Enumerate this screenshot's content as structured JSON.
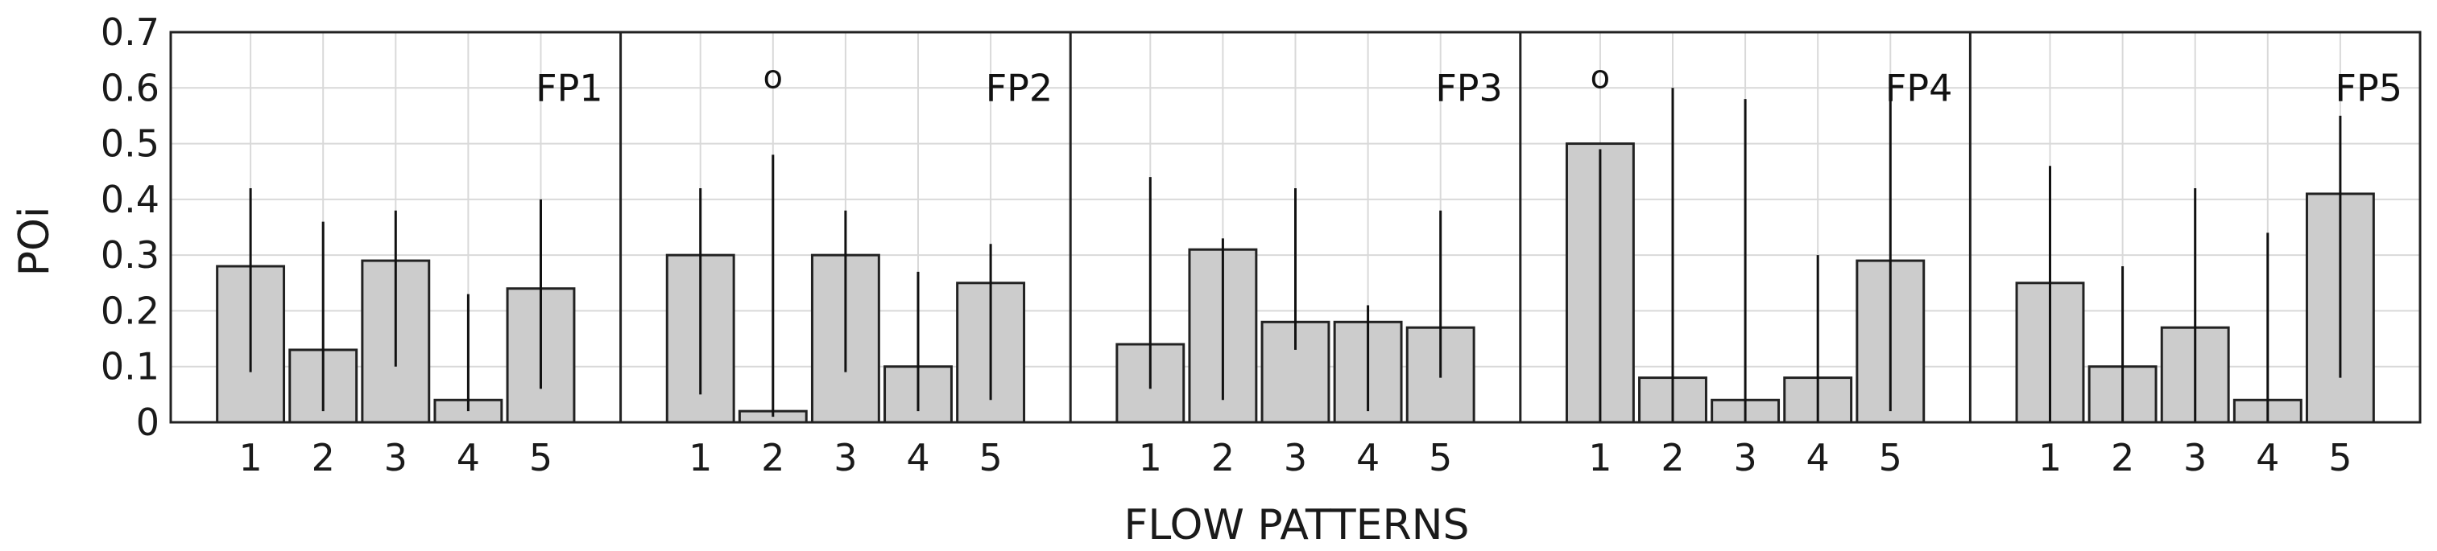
{
  "chart_data": {
    "type": "bar",
    "xlabel": "FLOW PATTERNS",
    "ylabel": "POi",
    "ylim": [
      0,
      0.7
    ],
    "yticks": [
      "0",
      "0.1",
      "0.2",
      "0.3",
      "0.4",
      "0.5",
      "0.6",
      "0.7"
    ],
    "grid": true,
    "bar_color": "#cccccc",
    "edge_color": "#222222",
    "panels": [
      {
        "label": "FP1",
        "categories": [
          "1",
          "2",
          "3",
          "4",
          "5"
        ],
        "values": [
          0.28,
          0.13,
          0.29,
          0.04,
          0.24
        ],
        "err_low": [
          0.09,
          0.02,
          0.1,
          0.02,
          0.06
        ],
        "err_high": [
          0.42,
          0.36,
          0.38,
          0.23,
          0.4
        ],
        "outliers": []
      },
      {
        "label": "FP2",
        "categories": [
          "1",
          "2",
          "3",
          "4",
          "5"
        ],
        "values": [
          0.3,
          0.02,
          0.3,
          0.1,
          0.25
        ],
        "err_low": [
          0.05,
          0.01,
          0.09,
          0.02,
          0.04
        ],
        "err_high": [
          0.42,
          0.48,
          0.38,
          0.27,
          0.32
        ],
        "outliers": [
          {
            "category": "2",
            "value": 0.62
          }
        ]
      },
      {
        "label": "FP3",
        "categories": [
          "1",
          "2",
          "3",
          "4",
          "5"
        ],
        "values": [
          0.14,
          0.31,
          0.18,
          0.18,
          0.17
        ],
        "err_low": [
          0.06,
          0.04,
          0.13,
          0.02,
          0.08
        ],
        "err_high": [
          0.44,
          0.33,
          0.42,
          0.21,
          0.38
        ],
        "outliers": []
      },
      {
        "label": "FP4",
        "categories": [
          "1",
          "2",
          "3",
          "4",
          "5"
        ],
        "values": [
          0.5,
          0.08,
          0.04,
          0.08,
          0.29
        ],
        "err_low": [
          0.0,
          0.0,
          0.0,
          0.0,
          0.02
        ],
        "err_high": [
          0.49,
          0.6,
          0.58,
          0.3,
          0.58
        ],
        "outliers": [
          {
            "category": "1",
            "value": 0.62
          }
        ]
      },
      {
        "label": "FP5",
        "categories": [
          "1",
          "2",
          "3",
          "4",
          "5"
        ],
        "values": [
          0.25,
          0.1,
          0.17,
          0.04,
          0.41
        ],
        "err_low": [
          0.0,
          0.0,
          0.0,
          0.0,
          0.08
        ],
        "err_high": [
          0.46,
          0.28,
          0.42,
          0.34,
          0.55
        ],
        "outliers": []
      }
    ]
  }
}
